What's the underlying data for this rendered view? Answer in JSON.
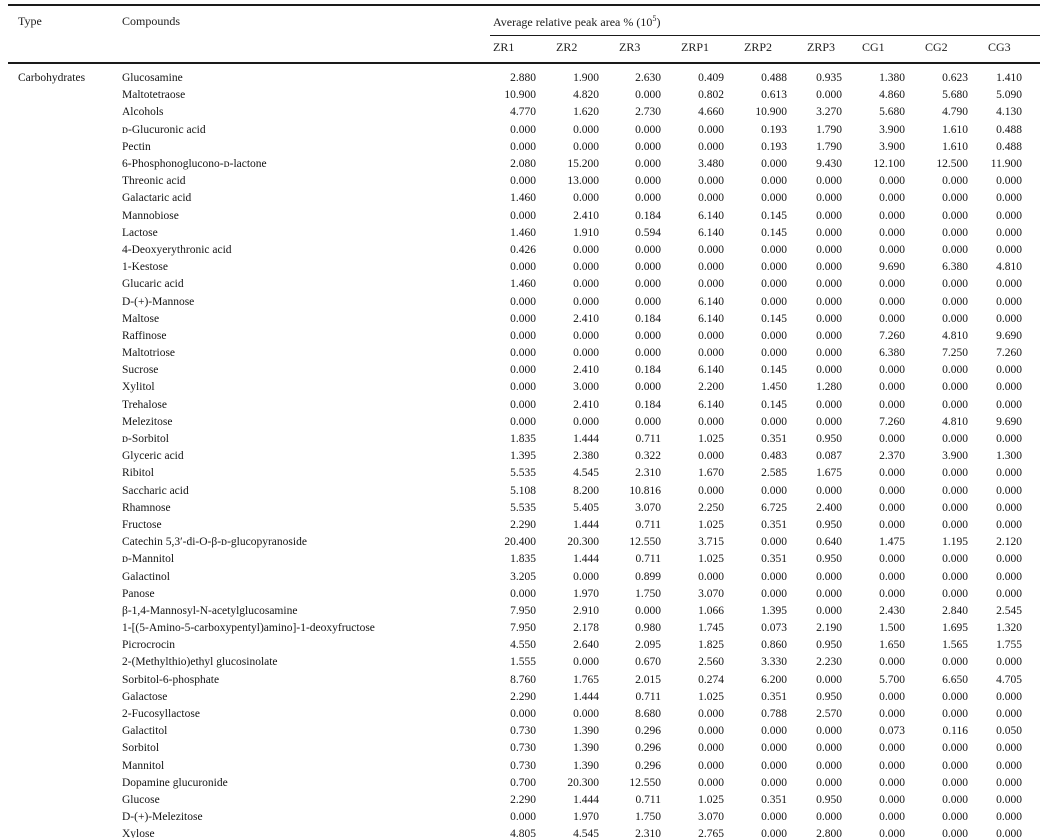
{
  "table": {
    "header": {
      "type": "Type",
      "compounds": "Compounds",
      "group": {
        "prefix": "Average relative peak area % (10",
        "sup": "5",
        "suffix": ")"
      },
      "samples": [
        "ZR1",
        "ZR2",
        "ZR3",
        "ZRP1",
        "ZRP2",
        "ZRP3",
        "CG1",
        "CG2",
        "CG3"
      ]
    },
    "rows": [
      {
        "type": "Carbohydrates",
        "compound": "Glucosamine",
        "values": [
          "2.880",
          "1.900",
          "2.630",
          "0.409",
          "0.488",
          "0.935",
          "1.380",
          "0.623",
          "1.410"
        ]
      },
      {
        "type": "",
        "compound": "Maltotetraose",
        "values": [
          "10.900",
          "4.820",
          "0.000",
          "0.802",
          "0.613",
          "0.000",
          "4.860",
          "5.680",
          "5.090"
        ]
      },
      {
        "type": "",
        "compound": "Alcohols",
        "values": [
          "4.770",
          "1.620",
          "2.730",
          "4.660",
          "10.900",
          "3.270",
          "5.680",
          "4.790",
          "4.130"
        ]
      },
      {
        "type": "",
        "compound": "ᴅ-Glucuronic acid",
        "values": [
          "0.000",
          "0.000",
          "0.000",
          "0.000",
          "0.193",
          "1.790",
          "3.900",
          "1.610",
          "0.488"
        ]
      },
      {
        "type": "",
        "compound": "Pectin",
        "values": [
          "0.000",
          "0.000",
          "0.000",
          "0.000",
          "0.193",
          "1.790",
          "3.900",
          "1.610",
          "0.488"
        ]
      },
      {
        "type": "",
        "compound": "6-Phosphonoglucono-ᴅ-lactone",
        "values": [
          "2.080",
          "15.200",
          "0.000",
          "3.480",
          "0.000",
          "9.430",
          "12.100",
          "12.500",
          "11.900"
        ]
      },
      {
        "type": "",
        "compound": "Threonic acid",
        "values": [
          "0.000",
          "13.000",
          "0.000",
          "0.000",
          "0.000",
          "0.000",
          "0.000",
          "0.000",
          "0.000"
        ]
      },
      {
        "type": "",
        "compound": "Galactaric acid",
        "values": [
          "1.460",
          "0.000",
          "0.000",
          "0.000",
          "0.000",
          "0.000",
          "0.000",
          "0.000",
          "0.000"
        ]
      },
      {
        "type": "",
        "compound": "Mannobiose",
        "values": [
          "0.000",
          "2.410",
          "0.184",
          "6.140",
          "0.145",
          "0.000",
          "0.000",
          "0.000",
          "0.000"
        ]
      },
      {
        "type": "",
        "compound": "Lactose",
        "values": [
          "1.460",
          "1.910",
          "0.594",
          "6.140",
          "0.145",
          "0.000",
          "0.000",
          "0.000",
          "0.000"
        ]
      },
      {
        "type": "",
        "compound": "4-Deoxyerythronic acid",
        "values": [
          "0.426",
          "0.000",
          "0.000",
          "0.000",
          "0.000",
          "0.000",
          "0.000",
          "0.000",
          "0.000"
        ]
      },
      {
        "type": "",
        "compound": "1-Kestose",
        "values": [
          "0.000",
          "0.000",
          "0.000",
          "0.000",
          "0.000",
          "0.000",
          "9.690",
          "6.380",
          "4.810"
        ]
      },
      {
        "type": "",
        "compound": "Glucaric acid",
        "values": [
          "1.460",
          "0.000",
          "0.000",
          "0.000",
          "0.000",
          "0.000",
          "0.000",
          "0.000",
          "0.000"
        ]
      },
      {
        "type": "",
        "compound": "D-(+)-Mannose",
        "values": [
          "0.000",
          "0.000",
          "0.000",
          "6.140",
          "0.000",
          "0.000",
          "0.000",
          "0.000",
          "0.000"
        ]
      },
      {
        "type": "",
        "compound": "Maltose",
        "values": [
          "0.000",
          "2.410",
          "0.184",
          "6.140",
          "0.145",
          "0.000",
          "0.000",
          "0.000",
          "0.000"
        ]
      },
      {
        "type": "",
        "compound": "Raffinose",
        "values": [
          "0.000",
          "0.000",
          "0.000",
          "0.000",
          "0.000",
          "0.000",
          "7.260",
          "4.810",
          "9.690"
        ]
      },
      {
        "type": "",
        "compound": "Maltotriose",
        "values": [
          "0.000",
          "0.000",
          "0.000",
          "0.000",
          "0.000",
          "0.000",
          "6.380",
          "7.250",
          "7.260"
        ]
      },
      {
        "type": "",
        "compound": "Sucrose",
        "values": [
          "0.000",
          "2.410",
          "0.184",
          "6.140",
          "0.145",
          "0.000",
          "0.000",
          "0.000",
          "0.000"
        ]
      },
      {
        "type": "",
        "compound": "Xylitol",
        "values": [
          "0.000",
          "3.000",
          "0.000",
          "2.200",
          "1.450",
          "1.280",
          "0.000",
          "0.000",
          "0.000"
        ]
      },
      {
        "type": "",
        "compound": "Trehalose",
        "values": [
          "0.000",
          "2.410",
          "0.184",
          "6.140",
          "0.145",
          "0.000",
          "0.000",
          "0.000",
          "0.000"
        ]
      },
      {
        "type": "",
        "compound": "Melezitose",
        "values": [
          "0.000",
          "0.000",
          "0.000",
          "0.000",
          "0.000",
          "0.000",
          "7.260",
          "4.810",
          "9.690"
        ]
      },
      {
        "type": "",
        "compound": "ᴅ-Sorbitol",
        "values": [
          "1.835",
          "1.444",
          "0.711",
          "1.025",
          "0.351",
          "0.950",
          "0.000",
          "0.000",
          "0.000"
        ]
      },
      {
        "type": "",
        "compound": "Glyceric acid",
        "values": [
          "1.395",
          "2.380",
          "0.322",
          "0.000",
          "0.483",
          "0.087",
          "2.370",
          "3.900",
          "1.300"
        ]
      },
      {
        "type": "",
        "compound": "Ribitol",
        "values": [
          "5.535",
          "4.545",
          "2.310",
          "1.670",
          "2.585",
          "1.675",
          "0.000",
          "0.000",
          "0.000"
        ]
      },
      {
        "type": "",
        "compound": "Saccharic acid",
        "values": [
          "5.108",
          "8.200",
          "10.816",
          "0.000",
          "0.000",
          "0.000",
          "0.000",
          "0.000",
          "0.000"
        ]
      },
      {
        "type": "",
        "compound": "Rhamnose",
        "values": [
          "5.535",
          "5.405",
          "3.070",
          "2.250",
          "6.725",
          "2.400",
          "0.000",
          "0.000",
          "0.000"
        ]
      },
      {
        "type": "",
        "compound": "Fructose",
        "values": [
          "2.290",
          "1.444",
          "0.711",
          "1.025",
          "0.351",
          "0.950",
          "0.000",
          "0.000",
          "0.000"
        ]
      },
      {
        "type": "",
        "compound": "Catechin 5,3′-di-O-β-ᴅ-glucopyranoside",
        "values": [
          "20.400",
          "20.300",
          "12.550",
          "3.715",
          "0.000",
          "0.640",
          "1.475",
          "1.195",
          "2.120"
        ]
      },
      {
        "type": "",
        "compound": "ᴅ-Mannitol",
        "values": [
          "1.835",
          "1.444",
          "0.711",
          "1.025",
          "0.351",
          "0.950",
          "0.000",
          "0.000",
          "0.000"
        ]
      },
      {
        "type": "",
        "compound": "Galactinol",
        "values": [
          "3.205",
          "0.000",
          "0.899",
          "0.000",
          "0.000",
          "0.000",
          "0.000",
          "0.000",
          "0.000"
        ]
      },
      {
        "type": "",
        "compound": "Panose",
        "values": [
          "0.000",
          "1.970",
          "1.750",
          "3.070",
          "0.000",
          "0.000",
          "0.000",
          "0.000",
          "0.000"
        ]
      },
      {
        "type": "",
        "compound": "β-1,4-Mannosyl-N-acetylglucosamine",
        "values": [
          "7.950",
          "2.910",
          "0.000",
          "1.066",
          "1.395",
          "0.000",
          "2.430",
          "2.840",
          "2.545"
        ]
      },
      {
        "type": "",
        "compound": "1-[(5-Amino-5-carboxypentyl)amino]-1-deoxyfructose",
        "values": [
          "7.950",
          "2.178",
          "0.980",
          "1.745",
          "0.073",
          "2.190",
          "1.500",
          "1.695",
          "1.320"
        ]
      },
      {
        "type": "",
        "compound": "Picrocrocin",
        "values": [
          "4.550",
          "2.640",
          "2.095",
          "1.825",
          "0.860",
          "0.950",
          "1.650",
          "1.565",
          "1.755"
        ]
      },
      {
        "type": "",
        "compound": "2-(Methylthio)ethyl glucosinolate",
        "values": [
          "1.555",
          "0.000",
          "0.670",
          "2.560",
          "3.330",
          "2.230",
          "0.000",
          "0.000",
          "0.000"
        ]
      },
      {
        "type": "",
        "compound": "Sorbitol-6-phosphate",
        "values": [
          "8.760",
          "1.765",
          "2.015",
          "0.274",
          "6.200",
          "0.000",
          "5.700",
          "6.650",
          "4.705"
        ]
      },
      {
        "type": "",
        "compound": "Galactose",
        "values": [
          "2.290",
          "1.444",
          "0.711",
          "1.025",
          "0.351",
          "0.950",
          "0.000",
          "0.000",
          "0.000"
        ]
      },
      {
        "type": "",
        "compound": "2-Fucosyllactose",
        "values": [
          "0.000",
          "0.000",
          "8.680",
          "0.000",
          "0.788",
          "2.570",
          "0.000",
          "0.000",
          "0.000"
        ]
      },
      {
        "type": "",
        "compound": "Galactitol",
        "values": [
          "0.730",
          "1.390",
          "0.296",
          "0.000",
          "0.000",
          "0.000",
          "0.073",
          "0.116",
          "0.050"
        ]
      },
      {
        "type": "",
        "compound": "Sorbitol",
        "values": [
          "0.730",
          "1.390",
          "0.296",
          "0.000",
          "0.000",
          "0.000",
          "0.000",
          "0.000",
          "0.000"
        ]
      },
      {
        "type": "",
        "compound": "Mannitol",
        "values": [
          "0.730",
          "1.390",
          "0.296",
          "0.000",
          "0.000",
          "0.000",
          "0.000",
          "0.000",
          "0.000"
        ]
      },
      {
        "type": "",
        "compound": "Dopamine glucuronide",
        "values": [
          "0.700",
          "20.300",
          "12.550",
          "0.000",
          "0.000",
          "0.000",
          "0.000",
          "0.000",
          "0.000"
        ]
      },
      {
        "type": "",
        "compound": "Glucose",
        "values": [
          "2.290",
          "1.444",
          "0.711",
          "1.025",
          "0.351",
          "0.950",
          "0.000",
          "0.000",
          "0.000"
        ]
      },
      {
        "type": "",
        "compound": "D-(+)-Melezitose",
        "values": [
          "0.000",
          "1.970",
          "1.750",
          "3.070",
          "0.000",
          "0.000",
          "0.000",
          "0.000",
          "0.000"
        ]
      },
      {
        "type": "",
        "compound": "Xylose",
        "values": [
          "4.805",
          "4.545",
          "2.310",
          "2.765",
          "0.000",
          "2.800",
          "0.000",
          "0.000",
          "0.000"
        ]
      }
    ]
  }
}
